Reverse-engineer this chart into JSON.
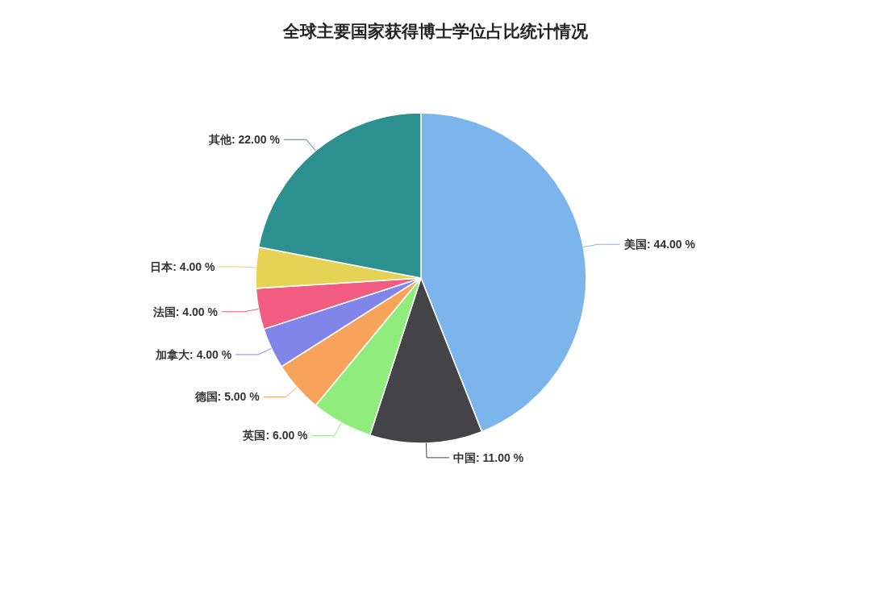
{
  "chart_data": {
    "type": "pie",
    "title": "全球主要国家获得博士学位占比统计情况",
    "categories": [
      "美国",
      "中国",
      "英国",
      "德国",
      "加拿大",
      "法国",
      "日本",
      "其他"
    ],
    "values": [
      44,
      11,
      6,
      5,
      4,
      4,
      4,
      22
    ],
    "value_labels": [
      "44.00 %",
      "11.00 %",
      "6.00 %",
      "5.00 %",
      "4.00 %",
      "4.00 %",
      "4.00 %",
      "22.00 %"
    ],
    "colors": [
      "#7cb5ec",
      "#434348",
      "#90ed7d",
      "#f7a35c",
      "#8085e9",
      "#f15c80",
      "#e4d354",
      "#2b908f"
    ]
  }
}
